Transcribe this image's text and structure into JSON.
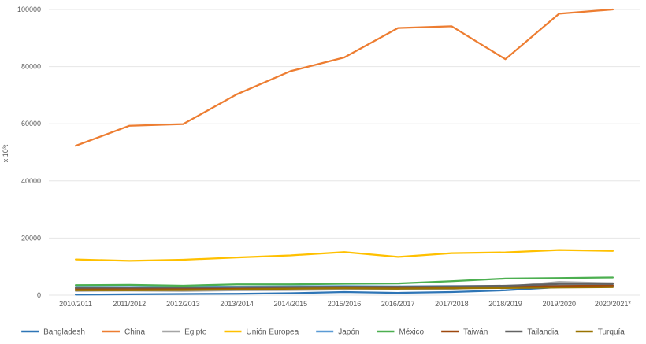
{
  "chart_data": {
    "type": "line",
    "title": "",
    "xlabel": "",
    "ylabel": "x 10³t",
    "ylim": [
      0,
      100000
    ],
    "yticks": [
      "0",
      "20000",
      "40000",
      "60000",
      "80000",
      "100000"
    ],
    "ytick_values": [
      0,
      20000,
      40000,
      60000,
      80000,
      100000
    ],
    "grid": true,
    "legend_position": "bottom",
    "categories": [
      "2010/2011",
      "2011/2012",
      "2012/2013",
      "2013/2014",
      "2014/2015",
      "2015/2016",
      "2016/2017",
      "2017/2018",
      "2018/2019",
      "2019/2020",
      "2020/2021*"
    ],
    "series": [
      {
        "name": "Bangladesh",
        "color": "#2e75b6",
        "values": [
          200,
          300,
          400,
          500,
          700,
          1100,
          800,
          1100,
          1700,
          2800,
          3200
        ]
      },
      {
        "name": "China",
        "color": "#ed7d31",
        "values": [
          52300,
          59300,
          59900,
          70300,
          78400,
          83200,
          93500,
          94100,
          82600,
          98500,
          100000
        ]
      },
      {
        "name": "Egipto",
        "color": "#a5a5a5",
        "values": [
          1500,
          1600,
          1500,
          1700,
          1800,
          2000,
          2000,
          2200,
          3000,
          4600,
          4200
        ]
      },
      {
        "name": "Unión Europea",
        "color": "#ffc000",
        "values": [
          12500,
          12000,
          12400,
          13200,
          13900,
          15100,
          13400,
          14700,
          15000,
          15800,
          15500
        ]
      },
      {
        "name": "Japón",
        "color": "#5b9bd5",
        "values": [
          2900,
          2900,
          3000,
          3000,
          3100,
          3200,
          3100,
          3200,
          3200,
          3300,
          3300
        ]
      },
      {
        "name": "México",
        "color": "#4caf50",
        "values": [
          3500,
          3600,
          3300,
          3800,
          3800,
          4000,
          4100,
          4900,
          5800,
          6000,
          6200
        ]
      },
      {
        "name": "Taiwán",
        "color": "#9e480e",
        "values": [
          2200,
          2300,
          2200,
          2300,
          2400,
          2500,
          2600,
          2700,
          2900,
          3200,
          3400
        ]
      },
      {
        "name": "Tailandia",
        "color": "#636363",
        "values": [
          2600,
          2700,
          2700,
          2800,
          2900,
          3000,
          3000,
          3100,
          3300,
          3900,
          3900
        ]
      },
      {
        "name": "Turquía",
        "color": "#997300",
        "values": [
          1700,
          1700,
          1800,
          2000,
          2300,
          2400,
          2300,
          2400,
          2500,
          2700,
          2800
        ]
      }
    ]
  }
}
